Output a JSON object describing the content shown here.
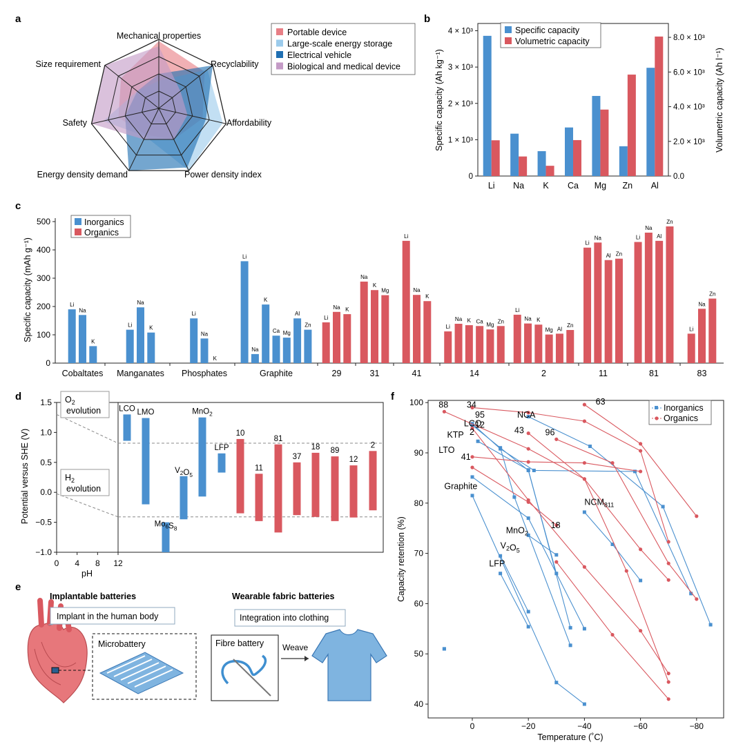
{
  "colors": {
    "blue": "#4a90cf",
    "red": "#d9585f",
    "dark_blue": "#1f6fb2",
    "light_blue": "#9ccbec",
    "pink": "#e87f86",
    "purple": "#c49bc6",
    "axis": "#222222",
    "grid_dash": "#888888"
  },
  "panel_labels": [
    "a",
    "b",
    "c",
    "d",
    "e",
    "f"
  ],
  "chart_data": [
    {
      "id": "a",
      "type": "radar",
      "axes": [
        "Mechanical properties",
        "Recyclability",
        "Affordability",
        "Power density index",
        "Energy density demand",
        "Safety",
        "Size requirement"
      ],
      "levels": 4,
      "series": [
        {
          "name": "Portable device",
          "color": "#e87f86",
          "values": [
            3.9,
            3.4,
            2.6,
            2.0,
            1.7,
            2.4,
            2.8
          ]
        },
        {
          "name": "Large-scale energy storage",
          "color": "#9ccbec",
          "values": [
            1.6,
            3.6,
            3.8,
            4.0,
            1.8,
            3.3,
            1.6
          ]
        },
        {
          "name": "Electrical vehicle",
          "color": "#1f6fb2",
          "values": [
            2.0,
            4.0,
            2.8,
            3.8,
            4.0,
            2.0,
            1.6
          ]
        },
        {
          "name": "Biological and medical device",
          "color": "#c49bc6",
          "values": [
            3.6,
            1.6,
            1.7,
            2.0,
            2.0,
            4.0,
            4.0
          ]
        }
      ]
    },
    {
      "id": "b",
      "type": "bar",
      "categories": [
        "Li",
        "Na",
        "K",
        "Ca",
        "Mg",
        "Zn",
        "Al"
      ],
      "series": [
        {
          "name": "Specific capacity",
          "axis": "left",
          "values": [
            3860,
            1166,
            685,
            1337,
            2205,
            820,
            2980
          ]
        },
        {
          "name": "Volumetric capacity",
          "axis": "right",
          "values": [
            2062,
            1128,
            591,
            2073,
            3833,
            5851,
            8046
          ]
        }
      ],
      "ylabel": "Specific capacity (Ah kg⁻¹)",
      "ylabel_right": "Volumetric capacity (Ah l⁻¹)",
      "ylim": [
        0,
        4200
      ],
      "ylim_right": [
        0,
        8800
      ],
      "yticks": [
        "0",
        "1 × 10³",
        "2 × 10³",
        "3 × 10³",
        "4 × 10³"
      ],
      "yticks_right": [
        "0.0",
        "2.0 × 10³",
        "4.0 × 10³",
        "6.0 × 10³",
        "8.0 × 10³"
      ]
    },
    {
      "id": "c",
      "type": "bar",
      "ylabel": "Specific capacity (mAh g⁻¹)",
      "ylim": [
        0,
        500
      ],
      "yticks": [
        "0",
        "100",
        "200",
        "300",
        "400",
        "500"
      ],
      "legend": [
        "Inorganics",
        "Organics"
      ],
      "groups": [
        {
          "label": "Cobaltates",
          "kind": "inorganic",
          "bars": [
            {
              "ion": "Li",
              "v": 190
            },
            {
              "ion": "Na",
              "v": 170
            },
            {
              "ion": "K",
              "v": 60
            }
          ]
        },
        {
          "label": "Manganates",
          "kind": "inorganic",
          "bars": [
            {
              "ion": "Li",
              "v": 118
            },
            {
              "ion": "Na",
              "v": 197
            },
            {
              "ion": "K",
              "v": 108
            }
          ]
        },
        {
          "label": "Phosphates",
          "kind": "inorganic",
          "bars": [
            {
              "ion": "Li",
              "v": 158
            },
            {
              "ion": "Na",
              "v": 87
            },
            {
              "ion": "K",
              "v": 0
            }
          ]
        },
        {
          "label": "Graphite",
          "kind": "inorganic",
          "bars": [
            {
              "ion": "Li",
              "v": 360
            },
            {
              "ion": "Na",
              "v": 32
            },
            {
              "ion": "K",
              "v": 207
            },
            {
              "ion": "Ca",
              "v": 97
            },
            {
              "ion": "Mg",
              "v": 90
            },
            {
              "ion": "Al",
              "v": 158
            },
            {
              "ion": "Zn",
              "v": 118
            }
          ]
        },
        {
          "label": "29",
          "kind": "organic",
          "bars": [
            {
              "ion": "Li",
              "v": 144
            },
            {
              "ion": "Na",
              "v": 181
            },
            {
              "ion": "K",
              "v": 173
            }
          ]
        },
        {
          "label": "31",
          "kind": "organic",
          "bars": [
            {
              "ion": "Na",
              "v": 288
            },
            {
              "ion": "K",
              "v": 258
            },
            {
              "ion": "Mg",
              "v": 240
            }
          ]
        },
        {
          "label": "41",
          "kind": "organic",
          "bars": [
            {
              "ion": "Li",
              "v": 432
            },
            {
              "ion": "Na",
              "v": 241
            },
            {
              "ion": "K",
              "v": 219
            }
          ]
        },
        {
          "label": "14",
          "kind": "organic",
          "bars": [
            {
              "ion": "Li",
              "v": 112
            },
            {
              "ion": "Na",
              "v": 139
            },
            {
              "ion": "K",
              "v": 134
            },
            {
              "ion": "Ca",
              "v": 131
            },
            {
              "ion": "Mg",
              "v": 119
            },
            {
              "ion": "Zn",
              "v": 131
            }
          ]
        },
        {
          "label": "2",
          "kind": "organic",
          "bars": [
            {
              "ion": "Li",
              "v": 171
            },
            {
              "ion": "Na",
              "v": 140
            },
            {
              "ion": "K",
              "v": 136
            },
            {
              "ion": "Mg",
              "v": 101
            },
            {
              "ion": "Al",
              "v": 104
            },
            {
              "ion": "Zn",
              "v": 117
            }
          ]
        },
        {
          "label": "11",
          "kind": "organic",
          "bars": [
            {
              "ion": "Li",
              "v": 408
            },
            {
              "ion": "Na",
              "v": 426
            },
            {
              "ion": "Al",
              "v": 364
            },
            {
              "ion": "Zn",
              "v": 369
            }
          ]
        },
        {
          "label": "81",
          "kind": "organic",
          "bars": [
            {
              "ion": "Li",
              "v": 428
            },
            {
              "ion": "Na",
              "v": 461
            },
            {
              "ion": "Al",
              "v": 432
            },
            {
              "ion": "Zn",
              "v": 483
            }
          ]
        },
        {
          "label": "83",
          "kind": "organic",
          "bars": [
            {
              "ion": "Li",
              "v": 104
            },
            {
              "ion": "Na",
              "v": 192
            },
            {
              "ion": "Zn",
              "v": 228
            }
          ]
        }
      ]
    },
    {
      "id": "d",
      "type": "floating-bar",
      "ylabel": "Potential versus SHE (V)",
      "ylim": [
        -1.0,
        1.5
      ],
      "yticks": [
        "−1.0",
        "−0.5",
        "0.0",
        "0.5",
        "1.0",
        "1.5"
      ],
      "xlabel": "pH",
      "xticks": [
        "0",
        "4",
        "8",
        "12"
      ],
      "annotations": [
        {
          "text": "O",
          "sub": "2",
          "line2": "evolution"
        },
        {
          "text": "H",
          "sub": "2",
          "line2": "evolution"
        }
      ],
      "ref_lines": [
        0.82,
        -0.41
      ],
      "bars": [
        {
          "label": "LCO",
          "kind": "inorganic",
          "low": 0.86,
          "high": 1.3
        },
        {
          "label": "LMO",
          "kind": "inorganic",
          "low": -0.2,
          "high": 1.24
        },
        {
          "label": "Mo6S8",
          "kind": "inorganic",
          "low": -1.0,
          "high": -0.5
        },
        {
          "label": "V2O5",
          "kind": "inorganic",
          "low": -0.45,
          "high": 0.27
        },
        {
          "label": "MnO2",
          "kind": "inorganic",
          "low": -0.07,
          "high": 1.25
        },
        {
          "label": "LFP",
          "kind": "inorganic",
          "low": 0.33,
          "high": 0.65
        },
        {
          "label": "10",
          "kind": "organic",
          "low": -0.35,
          "high": 0.89
        },
        {
          "label": "11",
          "kind": "organic",
          "low": -0.48,
          "high": 0.31
        },
        {
          "label": "81",
          "kind": "organic",
          "low": -0.67,
          "high": 0.8
        },
        {
          "label": "37",
          "kind": "organic",
          "low": -0.38,
          "high": 0.5
        },
        {
          "label": "18",
          "kind": "organic",
          "low": -0.41,
          "high": 0.66
        },
        {
          "label": "89",
          "kind": "organic",
          "low": -0.48,
          "high": 0.6
        },
        {
          "label": "12",
          "kind": "organic",
          "low": -0.42,
          "high": 0.45
        },
        {
          "label": "2",
          "kind": "organic",
          "low": -0.3,
          "high": 0.69
        }
      ]
    },
    {
      "id": "f",
      "type": "line",
      "xlabel": "Temperature (˚C)",
      "ylabel": "Capacity retention (%)",
      "xlim": [
        10,
        -90
      ],
      "ylim": [
        38,
        100
      ],
      "xticks": [
        "0",
        "−20",
        "−40",
        "−60",
        "−80"
      ],
      "yticks": [
        "40",
        "50",
        "60",
        "70",
        "80",
        "90",
        "100"
      ],
      "legend": [
        "Inorganics",
        "Organics"
      ],
      "series": [
        {
          "name": "LTO",
          "kind": "inorganic",
          "x": [
            -10,
            -15,
            -35
          ],
          "y": [
            91,
            81.2,
            51.7
          ]
        },
        {
          "name": "Graphite",
          "kind": "inorganic",
          "x": [
            0,
            -30,
            -40
          ],
          "y": [
            81.5,
            44.3,
            40
          ]
        },
        {
          "name": "Graphite-b",
          "kind": "inorganic",
          "x": [
            0,
            -20,
            -40
          ],
          "y": [
            85.2,
            77,
            55
          ]
        },
        {
          "name": "LCO",
          "kind": "inorganic",
          "x": [
            0,
            -20,
            -30
          ],
          "y": [
            95.5,
            86.5,
            66
          ]
        },
        {
          "name": "KTP",
          "kind": "inorganic",
          "x": [
            -2,
            -20,
            -35
          ],
          "y": [
            92.3,
            86.6,
            55.2
          ]
        },
        {
          "name": "NCA",
          "kind": "inorganic",
          "x": [
            -20,
            -42,
            -68,
            -85
          ],
          "y": [
            97.2,
            91.3,
            79.3,
            55.8
          ]
        },
        {
          "name": "NCM811",
          "kind": "inorganic",
          "x": [
            -40,
            -50,
            -60
          ],
          "y": [
            78.2,
            71.8,
            64.6
          ]
        },
        {
          "name": "V2O5",
          "kind": "inorganic",
          "x": [
            -10,
            -20
          ],
          "y": [
            69.5,
            58.4
          ]
        },
        {
          "name": "LFP",
          "kind": "inorganic",
          "x": [
            -10,
            -20
          ],
          "y": [
            66,
            55.4
          ]
        },
        {
          "name": "MnO2",
          "kind": "inorganic",
          "x": [
            -20,
            -30
          ],
          "y": [
            73.6,
            69.7
          ]
        },
        {
          "name": "95",
          "kind": "inorganic",
          "x": [
            0,
            -10,
            -22,
            -58,
            -78
          ],
          "y": [
            95.8,
            90.8,
            86.5,
            86.3,
            62
          ]
        },
        {
          "name": "LTO-b",
          "kind": "inorganic",
          "x": [
            10,
            10
          ],
          "y": [
            51,
            51
          ]
        },
        {
          "name": "88",
          "kind": "organic",
          "x": [
            10,
            -20,
            -40,
            -55,
            -70
          ],
          "y": [
            98.2,
            90.8,
            84.8,
            66.5,
            44.4
          ]
        },
        {
          "name": "34",
          "kind": "organic",
          "x": [
            0,
            -20,
            -40,
            -60,
            -70
          ],
          "y": [
            99,
            98,
            96.3,
            90.4,
            72.3
          ]
        },
        {
          "name": "63",
          "kind": "organic",
          "x": [
            -40,
            -60,
            -80
          ],
          "y": [
            99.6,
            91.8,
            77.4
          ]
        },
        {
          "name": "43",
          "kind": "organic",
          "x": [
            -20,
            -40,
            -60,
            -70
          ],
          "y": [
            93.9,
            84.8,
            70.8,
            64.7
          ]
        },
        {
          "name": "96",
          "kind": "organic",
          "x": [
            -30,
            -50,
            -70,
            -80
          ],
          "y": [
            92.7,
            88,
            68,
            60.9
          ]
        },
        {
          "name": "12",
          "kind": "organic",
          "x": [
            0,
            -20,
            -40,
            -60
          ],
          "y": [
            89.2,
            88.2,
            88,
            86.3
          ]
        },
        {
          "name": "2",
          "kind": "organic",
          "x": [
            0,
            -20,
            -40,
            -60,
            -70
          ],
          "y": [
            94.9,
            80.6,
            67.3,
            54.6,
            46.1
          ]
        },
        {
          "name": "41",
          "kind": "organic",
          "x": [
            0,
            -20,
            -30
          ],
          "y": [
            87.1,
            80.2,
            75.6
          ]
        },
        {
          "name": "18",
          "kind": "organic",
          "x": [
            -30,
            -50,
            -70
          ],
          "y": [
            68.3,
            53.8,
            41
          ]
        }
      ],
      "labels": [
        {
          "text": "88",
          "x": 12,
          "y": 99
        },
        {
          "text": "34",
          "x": 2,
          "y": 99
        },
        {
          "text": "63",
          "x": -44,
          "y": 99.6
        },
        {
          "text": "95",
          "x": -1,
          "y": 97
        },
        {
          "text": "NCA",
          "x": -16,
          "y": 97
        },
        {
          "text": "LCO",
          "x": 3,
          "y": 95.3
        },
        {
          "text": "KTP",
          "x": 9,
          "y": 93
        },
        {
          "text": "2",
          "x": 1,
          "y": 93.6
        },
        {
          "text": "12",
          "x": -1,
          "y": 95
        },
        {
          "text": "43",
          "x": -15,
          "y": 93.9
        },
        {
          "text": "96",
          "x": -26,
          "y": 93.5
        },
        {
          "text": "LTO",
          "x": 12,
          "y": 90
        },
        {
          "text": "41",
          "x": 4,
          "y": 88.6
        },
        {
          "text": "Graphite",
          "x": 10,
          "y": 82.8
        },
        {
          "text": "NCM811",
          "x": -40,
          "y": 79.6
        },
        {
          "text": "18",
          "x": -28,
          "y": 75
        },
        {
          "text": "MnO2",
          "x": -12,
          "y": 74
        },
        {
          "text": "V2O5",
          "x": -10,
          "y": 71
        },
        {
          "text": "LFP",
          "x": -6,
          "y": 67.4
        }
      ]
    }
  ],
  "panel_e": {
    "left_title": "Implantable batteries",
    "left_callout": "Implant in the human body",
    "left_box": "Microbattery",
    "right_title": "Wearable fabric batteries",
    "right_callout": "Integration into clothing",
    "right_box": "Fibre battery",
    "arrow_label": "Weave"
  }
}
